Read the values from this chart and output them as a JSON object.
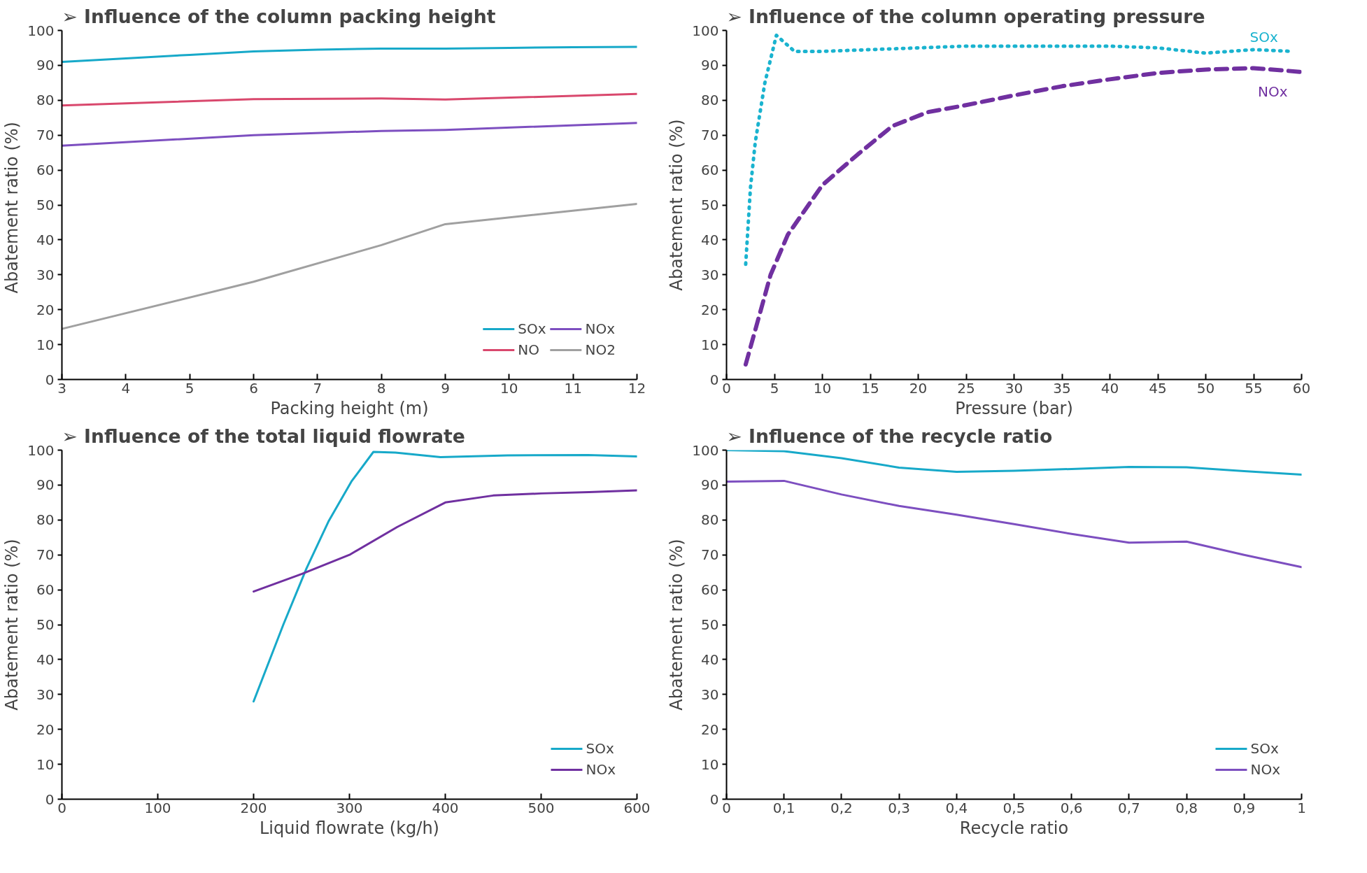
{
  "chart_data": [
    {
      "type": "line",
      "title": "➢     Influence of the column packing height",
      "xlabel": "Packing height (m)",
      "ylabel": "Abatement ratio  (%)",
      "xlim": [
        3,
        12
      ],
      "ylim": [
        0,
        100
      ],
      "xticks": [
        3,
        4,
        5,
        6,
        7,
        8,
        9,
        10,
        11,
        12
      ],
      "yticks": [
        0,
        10,
        20,
        30,
        40,
        50,
        60,
        70,
        80,
        90,
        100
      ],
      "grid": false,
      "legend": "bottom right",
      "line_style": "solid",
      "series": [
        {
          "name": "SOx",
          "color": "#17a9c9",
          "x": [
            3,
            4,
            5,
            6,
            7,
            8,
            9,
            10,
            11,
            12
          ],
          "values": [
            91,
            92,
            93,
            94,
            94.5,
            94.8,
            94.8,
            95,
            95.2,
            95.3
          ]
        },
        {
          "name": "NO",
          "color": "#d9486d",
          "x": [
            3,
            6,
            8,
            9,
            12
          ],
          "values": [
            78.5,
            80.3,
            80.5,
            80.2,
            81.8
          ]
        },
        {
          "name": "NOx",
          "color": "#7d4fc0",
          "x": [
            3,
            6,
            8,
            9,
            12
          ],
          "values": [
            67,
            70,
            71.2,
            71.5,
            73.5
          ]
        },
        {
          "name": "NO2",
          "color": "#a0a0a0",
          "x": [
            3,
            6,
            8,
            9,
            12
          ],
          "values": [
            14.5,
            28,
            38.5,
            44.5,
            50.3
          ]
        }
      ]
    },
    {
      "type": "line",
      "title": "➢     Influence of the column operating pressure",
      "xlabel": "Pressure (bar)",
      "ylabel": "Abatement ratio (%)",
      "xlim": [
        0,
        60
      ],
      "ylim": [
        0,
        100
      ],
      "xticks": [
        0,
        5,
        10,
        15,
        20,
        25,
        30,
        35,
        40,
        45,
        50,
        55,
        60
      ],
      "yticks": [
        0,
        10,
        20,
        30,
        40,
        50,
        60,
        70,
        80,
        90,
        100
      ],
      "grid": false,
      "legend": false,
      "series": [
        {
          "name": "SOx",
          "color": "#1ab3cf",
          "line_style": "dotted",
          "x": [
            2,
            2.5,
            3,
            4,
            5.2,
            7.1,
            10,
            15,
            20,
            25,
            30,
            35,
            40,
            45,
            50,
            55,
            59
          ],
          "values": [
            33,
            55,
            68,
            85,
            98.6,
            94,
            94,
            94.5,
            95,
            95.5,
            95.5,
            95.5,
            95.5,
            95,
            93.5,
            94.5,
            94
          ]
        },
        {
          "name": "NOx",
          "color": "#7030a0",
          "line_style": "dashed",
          "x": [
            2,
            4.6,
            6.4,
            10,
            13.7,
            17.3,
            21,
            25,
            30,
            35,
            40,
            45,
            50,
            55,
            60
          ],
          "values": [
            4.3,
            30,
            41.5,
            55.7,
            64.5,
            72.6,
            76.6,
            78.6,
            81.4,
            84,
            86,
            87.8,
            88.8,
            89.2,
            88.1
          ]
        }
      ]
    },
    {
      "type": "line",
      "title": "➢     Influence of the total liquid flowrate",
      "xlabel": "Liquid flowrate (kg/h)",
      "ylabel": "Abatement ratio (%)",
      "xlim": [
        0,
        600
      ],
      "ylim": [
        0,
        100
      ],
      "xticks": [
        0,
        100,
        200,
        300,
        400,
        500,
        600
      ],
      "yticks": [
        0,
        10,
        20,
        30,
        40,
        50,
        60,
        70,
        80,
        90,
        100
      ],
      "grid": false,
      "legend": "bottom right",
      "line_style": "solid",
      "series": [
        {
          "name": "SOx",
          "color": "#17a9c9",
          "x": [
            200,
            231,
            255,
            278,
            302,
            325,
            348,
            395,
            465,
            549,
            600
          ],
          "values": [
            28,
            50,
            66,
            79.5,
            91,
            99.5,
            99.3,
            98,
            98.5,
            98.6,
            98.2
          ]
        },
        {
          "name": "NOx",
          "color": "#7030a0",
          "x": [
            200,
            250,
            300,
            350,
            400,
            450,
            500,
            550,
            600
          ],
          "values": [
            59.5,
            64.5,
            70,
            78,
            85,
            87,
            87.6,
            88,
            88.5
          ]
        }
      ]
    },
    {
      "type": "line",
      "title": "➢     Influence of the recycle ratio",
      "xlabel": "Recycle ratio",
      "ylabel": "Abatement ratio (%)",
      "xlim": [
        0,
        1
      ],
      "ylim": [
        0,
        100
      ],
      "xticks": [
        0,
        {
          "value": 0.1,
          "label": "0,1"
        },
        {
          "value": 0.2,
          "label": "0,2"
        },
        {
          "value": 0.3,
          "label": "0,3"
        },
        {
          "value": 0.4,
          "label": "0,4"
        },
        {
          "value": 0.5,
          "label": "0,5"
        },
        {
          "value": 0.6,
          "label": "0,6"
        },
        {
          "value": 0.7,
          "label": "0,7"
        },
        {
          "value": 0.8,
          "label": "0,8"
        },
        {
          "value": 0.9,
          "label": "0,9"
        },
        1
      ],
      "yticks": [
        0,
        10,
        20,
        30,
        40,
        50,
        60,
        70,
        80,
        90,
        100
      ],
      "grid": false,
      "legend": "bottom right",
      "line_style": "solid",
      "series": [
        {
          "name": "SOx",
          "color": "#17a9c9",
          "x": [
            0,
            0.1,
            0.2,
            0.3,
            0.4,
            0.5,
            0.6,
            0.7,
            0.8,
            0.9,
            1
          ],
          "values": [
            100,
            99.7,
            97.7,
            95,
            93.8,
            94.1,
            94.6,
            95.2,
            95.1,
            94,
            93
          ]
        },
        {
          "name": "NOx",
          "color": "#7d4fc0",
          "x": [
            0,
            0.1,
            0.2,
            0.3,
            0.4,
            0.5,
            0.6,
            0.7,
            0.8,
            0.9,
            1
          ],
          "values": [
            91,
            91.2,
            87.3,
            84,
            81.5,
            78.8,
            76,
            73.5,
            73.8,
            70,
            66.5
          ]
        }
      ]
    }
  ]
}
